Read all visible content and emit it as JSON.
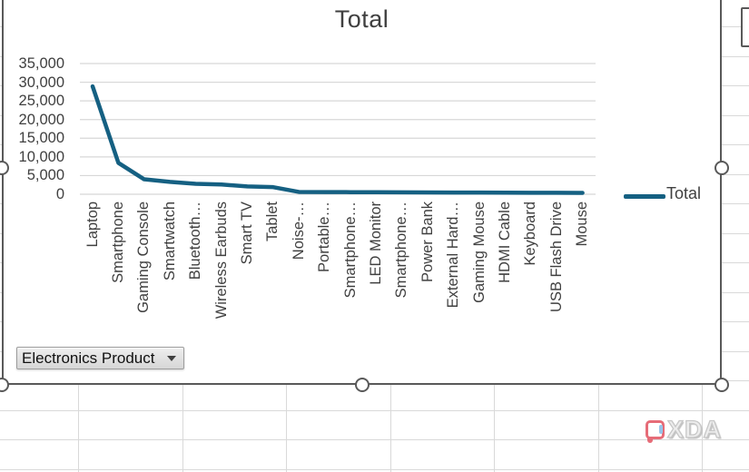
{
  "chart": {
    "title": "Total",
    "legend_label": "Total",
    "colors": {
      "series": "#156082",
      "gridline": "#d7d7d7",
      "axis_text": "#404040",
      "title_text": "#3f3f3f",
      "chart_border": "#595959",
      "sheet_gridline": "#d9d9d9"
    }
  },
  "chart_data": {
    "type": "line",
    "title": "Total",
    "categories": [
      "Laptop",
      "Smartphone",
      "Gaming Console",
      "Smartwatch",
      "Bluetooth…",
      "Wireless Earbuds",
      "Smart TV",
      "Tablet",
      "Noise-…",
      "Portable…",
      "Smartphone…",
      "LED Monitor",
      "Smartphone…",
      "Power Bank",
      "External Hard…",
      "Gaming Mouse",
      "HDMI Cable",
      "Keyboard",
      "USB Flash Drive",
      "Mouse"
    ],
    "series": [
      {
        "name": "Total",
        "values": [
          28900,
          8400,
          4000,
          3300,
          2800,
          2600,
          2100,
          1900,
          620,
          590,
          560,
          540,
          520,
          500,
          470,
          450,
          430,
          410,
          390,
          370
        ]
      }
    ],
    "ylim": [
      0,
      35000
    ],
    "y_ticks": [
      {
        "value": 35000,
        "label": "35,000"
      },
      {
        "value": 30000,
        "label": "30,000"
      },
      {
        "value": 25000,
        "label": "25,000"
      },
      {
        "value": 20000,
        "label": "20,000"
      },
      {
        "value": 15000,
        "label": "15,000"
      },
      {
        "value": 10000,
        "label": "10,000"
      },
      {
        "value": 5000,
        "label": "5,000"
      },
      {
        "value": 0,
        "label": "0"
      }
    ],
    "grid": true,
    "legend_position": "right",
    "x_labels_rotation": -90
  },
  "field_button": {
    "label": "Electronics Product"
  },
  "watermark": {
    "text": "XDA"
  }
}
